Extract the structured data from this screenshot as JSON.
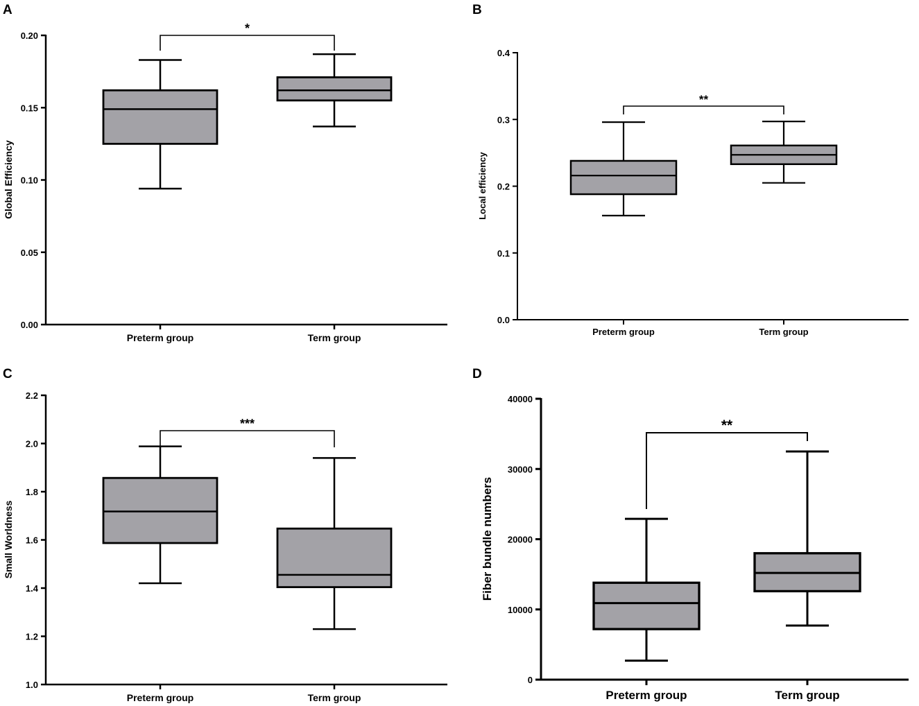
{
  "chart_data": [
    {
      "type": "box",
      "panel": "A",
      "ylabel": "Global Efficiency",
      "ylim": [
        0,
        0.2
      ],
      "yticks": [
        "0.00",
        "0.05",
        "0.10",
        "0.15",
        "0.20"
      ],
      "yticks_values": [
        0,
        0.05,
        0.1,
        0.15,
        0.2
      ],
      "categories": [
        "Preterm group",
        "Term group"
      ],
      "boxes": [
        {
          "min": 0.094,
          "q1": 0.125,
          "median": 0.149,
          "q3": 0.162,
          "max": 0.183
        },
        {
          "min": 0.137,
          "q1": 0.155,
          "median": 0.162,
          "q3": 0.171,
          "max": 0.187
        }
      ],
      "significance": "*"
    },
    {
      "type": "box",
      "panel": "B",
      "ylabel": "Local efficiency",
      "ylim": [
        0,
        0.4
      ],
      "yticks": [
        "0.0",
        "0.1",
        "0.2",
        "0.3",
        "0.4"
      ],
      "yticks_values": [
        0,
        0.1,
        0.2,
        0.3,
        0.4
      ],
      "categories": [
        "Preterm group",
        "Term group"
      ],
      "boxes": [
        {
          "min": 0.156,
          "q1": 0.188,
          "median": 0.216,
          "q3": 0.238,
          "max": 0.296
        },
        {
          "min": 0.205,
          "q1": 0.233,
          "median": 0.247,
          "q3": 0.261,
          "max": 0.297
        }
      ],
      "significance": "**"
    },
    {
      "type": "box",
      "panel": "C",
      "ylabel": "Small Worldness",
      "ylim": [
        1.0,
        2.2
      ],
      "yticks": [
        "1.0",
        "1.2",
        "1.4",
        "1.6",
        "1.8",
        "2.0",
        "2.2"
      ],
      "yticks_values": [
        1.0,
        1.2,
        1.4,
        1.6,
        1.8,
        2.0,
        2.2
      ],
      "categories": [
        "Preterm group",
        "Term group"
      ],
      "boxes": [
        {
          "min": 1.42,
          "q1": 1.587,
          "median": 1.718,
          "q3": 1.857,
          "max": 1.988
        },
        {
          "min": 1.23,
          "q1": 1.404,
          "median": 1.455,
          "q3": 1.647,
          "max": 1.94
        }
      ],
      "significance": "***"
    },
    {
      "type": "box",
      "panel": "D",
      "ylabel": "Fiber bundle numbers",
      "ylim": [
        0,
        40000
      ],
      "yticks": [
        "0",
        "10000",
        "20000",
        "30000",
        "40000"
      ],
      "yticks_values": [
        0,
        10000,
        20000,
        30000,
        40000
      ],
      "categories": [
        "Preterm group",
        "Term group"
      ],
      "boxes": [
        {
          "min": 2700,
          "q1": 7200,
          "median": 10900,
          "q3": 13800,
          "max": 22900
        },
        {
          "min": 7700,
          "q1": 12600,
          "median": 15200,
          "q3": 18000,
          "max": 32500
        }
      ],
      "significance": "**"
    }
  ],
  "style": {
    "box_fill": "#a3a2a7",
    "line_color": "#000000",
    "background": "#ffffff"
  }
}
